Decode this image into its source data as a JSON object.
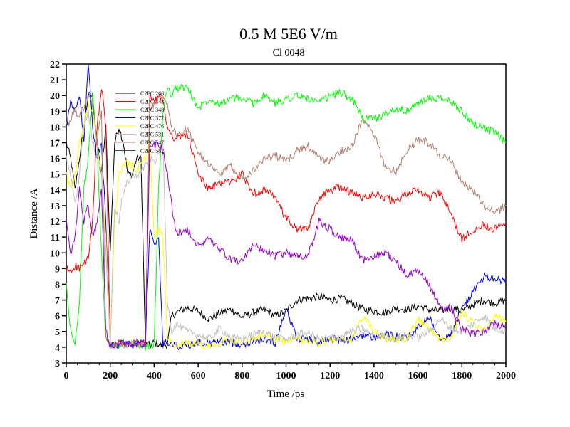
{
  "chart_data": {
    "type": "line",
    "title": "0.5 M 5E6 V/m",
    "subtitle": "Cl 0048",
    "xlabel": "Time /ps",
    "ylabel": "Distance /A",
    "xlim": [
      0,
      2000
    ],
    "ylim": [
      3,
      22
    ],
    "xticks": [
      0,
      200,
      400,
      600,
      800,
      1000,
      1200,
      1400,
      1600,
      1800,
      2000
    ],
    "yticks": [
      3,
      4,
      5,
      6,
      7,
      8,
      9,
      10,
      11,
      12,
      13,
      14,
      15,
      16,
      17,
      18,
      19,
      20,
      21,
      22
    ],
    "legend_position": "top-left",
    "series": [
      {
        "name": "C2PC 268",
        "color": "#000000",
        "x": [
          0,
          20,
          40,
          60,
          80,
          100,
          120,
          140,
          160,
          180,
          200,
          220,
          240,
          260,
          280,
          300,
          320,
          340,
          360,
          380,
          400,
          420,
          440,
          460,
          480,
          500,
          550,
          600,
          650,
          700,
          750,
          800,
          850,
          900,
          950,
          1000,
          1050,
          1100,
          1150,
          1200,
          1250,
          1300,
          1350,
          1400,
          1450,
          1500,
          1550,
          1600,
          1650,
          1700,
          1750,
          1800,
          1850,
          1900,
          1950,
          2000
        ],
        "y": [
          17,
          16,
          14,
          16,
          18,
          20,
          20,
          17,
          15,
          18,
          10,
          17,
          18,
          17,
          15,
          15,
          16,
          16,
          4.2,
          4.1,
          4.3,
          4.2,
          4.1,
          4.2,
          6,
          6.2,
          6.5,
          6.3,
          5.8,
          6.2,
          6.4,
          5.9,
          6.2,
          6.4,
          6.0,
          6.3,
          7.0,
          7.1,
          7.2,
          7.0,
          7.1,
          6.8,
          6.4,
          6.3,
          6.2,
          6.5,
          6.4,
          6.6,
          6.4,
          6.3,
          6.5,
          6.3,
          6.7,
          7.0,
          6.8,
          7.0
        ]
      },
      {
        "name": "C2PC 348",
        "color": "#ff0000",
        "x": [
          0,
          20,
          40,
          60,
          80,
          100,
          120,
          140,
          160,
          180,
          200,
          220,
          240,
          260,
          280,
          300,
          320,
          340,
          360,
          380,
          400,
          420,
          440,
          460,
          480,
          500,
          550,
          600,
          650,
          700,
          750,
          800,
          850,
          900,
          950,
          1000,
          1050,
          1100,
          1150,
          1200,
          1250,
          1300,
          1350,
          1400,
          1450,
          1500,
          1550,
          1600,
          1650,
          1700,
          1750,
          1800,
          1850,
          1900,
          1950,
          2000
        ],
        "y": [
          9,
          8.8,
          9.2,
          9.0,
          9.3,
          9.6,
          12,
          18,
          20.5,
          18,
          4.2,
          4.1,
          4.3,
          4.2,
          4.1,
          4.2,
          4.3,
          4.2,
          4.3,
          20,
          19.5,
          20,
          19.6,
          18,
          17.5,
          17.2,
          17.6,
          15,
          14,
          14.5,
          14.5,
          15,
          13.8,
          14,
          13.5,
          12.2,
          11.5,
          11.5,
          13.5,
          14,
          14.2,
          13.8,
          13.5,
          13.8,
          13.5,
          13.2,
          13.8,
          14,
          13.5,
          13.8,
          12.5,
          10.8,
          11.5,
          11.8,
          11.5,
          12.0
        ]
      },
      {
        "name": "C2PC 348",
        "color": "#00ff00",
        "x": [
          0,
          20,
          40,
          60,
          80,
          100,
          120,
          140,
          160,
          180,
          200,
          220,
          240,
          260,
          280,
          300,
          320,
          340,
          360,
          380,
          400,
          420,
          440,
          460,
          480,
          500,
          550,
          600,
          650,
          700,
          750,
          800,
          850,
          900,
          950,
          1000,
          1050,
          1100,
          1150,
          1200,
          1250,
          1300,
          1350,
          1400,
          1450,
          1500,
          1550,
          1600,
          1650,
          1700,
          1750,
          1800,
          1850,
          1900,
          1950,
          2000
        ],
        "y": [
          8,
          5,
          4.2,
          7,
          14,
          16,
          20,
          17,
          10,
          4.5,
          4.1,
          4.2,
          4.1,
          4.3,
          4.2,
          4.1,
          4.2,
          4.1,
          4.0,
          4.1,
          4.2,
          14,
          19,
          20.5,
          20,
          20.5,
          20.5,
          19.2,
          19.8,
          19.5,
          19.8,
          19.8,
          19.5,
          20,
          19.5,
          19.8,
          20,
          19.8,
          19.5,
          20,
          20.2,
          19.8,
          18.5,
          18.5,
          18.8,
          19.2,
          19,
          19.5,
          19.8,
          19.8,
          19.6,
          19,
          18.2,
          18,
          17.6,
          17.0
        ]
      },
      {
        "name": "C2PC 372",
        "color": "#0000ff",
        "x": [
          0,
          20,
          40,
          60,
          80,
          100,
          120,
          140,
          160,
          180,
          200,
          220,
          240,
          260,
          280,
          300,
          320,
          340,
          360,
          380,
          400,
          420,
          440,
          460,
          480,
          500,
          550,
          600,
          650,
          700,
          750,
          800,
          850,
          900,
          950,
          1000,
          1050,
          1100,
          1150,
          1200,
          1250,
          1300,
          1350,
          1400,
          1450,
          1500,
          1550,
          1600,
          1650,
          1700,
          1750,
          1800,
          1850,
          1900,
          1950,
          2000
        ],
        "y": [
          18,
          19.5,
          19,
          20,
          17,
          22,
          18,
          16,
          17,
          12,
          4.3,
          4.2,
          4.1,
          4.3,
          4.2,
          4.1,
          4.2,
          4.3,
          4.2,
          11.5,
          10.5,
          10.8,
          4.2,
          4.3,
          4.2,
          4.1,
          4.1,
          4.3,
          4.2,
          4.4,
          4.3,
          4.2,
          4.4,
          4.5,
          4.3,
          6.5,
          4.5,
          4.6,
          4.3,
          4.6,
          4.4,
          4.5,
          4.8,
          4.6,
          4.8,
          4.7,
          4.5,
          5.2,
          6.0,
          4.6,
          4.8,
          6.5,
          7.5,
          8.5,
          8.3,
          8.2
        ]
      },
      {
        "name": "C2PC 476",
        "color": "#ffff00",
        "x": [
          0,
          20,
          40,
          60,
          80,
          100,
          120,
          140,
          160,
          180,
          200,
          220,
          240,
          260,
          280,
          300,
          320,
          340,
          360,
          380,
          400,
          420,
          440,
          460,
          480,
          500,
          550,
          600,
          650,
          700,
          750,
          800,
          850,
          900,
          950,
          1000,
          1050,
          1100,
          1150,
          1200,
          1250,
          1300,
          1350,
          1400,
          1450,
          1500,
          1550,
          1600,
          1650,
          1700,
          1750,
          1800,
          1850,
          1900,
          1950,
          2000
        ],
        "y": [
          15,
          14,
          15,
          17,
          18,
          19.5,
          19,
          17,
          15,
          11,
          4.3,
          12,
          15,
          15.5,
          15.8,
          15.5,
          15.2,
          15.8,
          16,
          17,
          11,
          11.5,
          11,
          4.5,
          4.2,
          4.1,
          4.3,
          4.2,
          4.1,
          4.3,
          4.5,
          4.3,
          4.5,
          4.8,
          4.5,
          4.3,
          4.5,
          4.4,
          4.3,
          4.5,
          4.4,
          4.5,
          6.0,
          5.0,
          4.6,
          4.5,
          4.6,
          5.8,
          5.2,
          4.5,
          4.6,
          6.3,
          5.5,
          5.0,
          6.0,
          5.6
        ]
      },
      {
        "name": "C2PC 531",
        "color": "#c0c0c0",
        "x": [
          0,
          20,
          40,
          60,
          80,
          100,
          120,
          140,
          160,
          180,
          200,
          220,
          240,
          260,
          280,
          300,
          320,
          340,
          360,
          380,
          400,
          420,
          440,
          460,
          480,
          500,
          550,
          600,
          650,
          700,
          750,
          800,
          850,
          900,
          950,
          1000,
          1050,
          1100,
          1150,
          1200,
          1250,
          1300,
          1350,
          1400,
          1450,
          1500,
          1550,
          1600,
          1650,
          1700,
          1750,
          1800,
          1850,
          1900,
          1950,
          2000
        ],
        "y": [
          16,
          15,
          13,
          15,
          18,
          19,
          17,
          16,
          15,
          10,
          4.2,
          13,
          12,
          14,
          14.5,
          15,
          14.8,
          15.2,
          15.5,
          16,
          15.8,
          16.2,
          17,
          7,
          5,
          5.5,
          5.0,
          4.8,
          4.5,
          5.2,
          4.6,
          4.5,
          4.8,
          5.0,
          4.6,
          4.5,
          4.8,
          4.9,
          4.5,
          4.6,
          4.7,
          5.0,
          5.2,
          4.6,
          4.7,
          4.5,
          4.8,
          4.6,
          5.0,
          5.8,
          5.2,
          5.0,
          5.5,
          6.0,
          5.2,
          5.0
        ]
      },
      {
        "name": "C2PC 547",
        "color": "#b08070",
        "x": [
          0,
          20,
          40,
          60,
          80,
          100,
          120,
          140,
          160,
          180,
          200,
          220,
          240,
          260,
          280,
          300,
          320,
          340,
          360,
          380,
          400,
          420,
          440,
          460,
          480,
          500,
          550,
          600,
          650,
          700,
          750,
          800,
          850,
          900,
          950,
          1000,
          1050,
          1100,
          1150,
          1200,
          1250,
          1300,
          1350,
          1400,
          1450,
          1500,
          1550,
          1600,
          1650,
          1700,
          1750,
          1800,
          1850,
          1900,
          1950,
          2000
        ],
        "y": [
          18,
          18.5,
          19,
          18.8,
          19.2,
          20,
          19.5,
          17,
          19,
          4.5,
          4.2,
          4.1,
          4.3,
          4.2,
          4.1,
          4.2,
          4.3,
          4.2,
          4.3,
          19,
          19.5,
          19.8,
          20,
          19.5,
          18,
          17.5,
          17.8,
          16.5,
          15.5,
          15,
          15.5,
          14.8,
          15.2,
          16,
          16.2,
          15.8,
          16.5,
          16.8,
          16,
          15.8,
          16.5,
          16.8,
          18.5,
          17.5,
          15.5,
          15.2,
          16.5,
          17.2,
          17,
          16.2,
          15.8,
          14.5,
          14.0,
          13.0,
          12.5,
          13.0
        ]
      },
      {
        "name": "C2PC 582",
        "color": "#9900cc",
        "x": [
          0,
          20,
          40,
          60,
          80,
          100,
          120,
          140,
          160,
          180,
          200,
          220,
          240,
          260,
          280,
          300,
          320,
          340,
          360,
          380,
          400,
          420,
          440,
          460,
          480,
          500,
          550,
          600,
          650,
          700,
          750,
          800,
          850,
          900,
          950,
          1000,
          1050,
          1100,
          1150,
          1200,
          1250,
          1300,
          1350,
          1400,
          1450,
          1500,
          1550,
          1600,
          1650,
          1700,
          1750,
          1800,
          1850,
          1900,
          1950,
          2000
        ],
        "y": [
          12,
          10,
          11,
          14,
          12,
          13,
          11,
          12,
          14,
          5,
          4.1,
          4.2,
          4.1,
          4.3,
          4.2,
          4.1,
          4.2,
          4.1,
          4.2,
          17,
          16.8,
          17,
          16.5,
          15,
          13,
          11.2,
          11.5,
          10.5,
          10.8,
          10.2,
          9.5,
          9.5,
          10.5,
          10.2,
          9.8,
          10,
          9.8,
          9.8,
          12,
          11.5,
          11.0,
          10.8,
          9.5,
          9.8,
          10,
          9.5,
          8.5,
          9.0,
          8.0,
          6.5,
          6.5,
          5.2,
          4.8,
          5.0,
          5.5,
          5.2
        ]
      }
    ],
    "legend_entries": [
      "C2PC 268",
      "C2PC 348",
      "C2PC 348",
      "C2PC 372",
      "C2PC 476",
      "C2PC 531",
      "C2PC 547",
      "C2PC 582"
    ]
  }
}
